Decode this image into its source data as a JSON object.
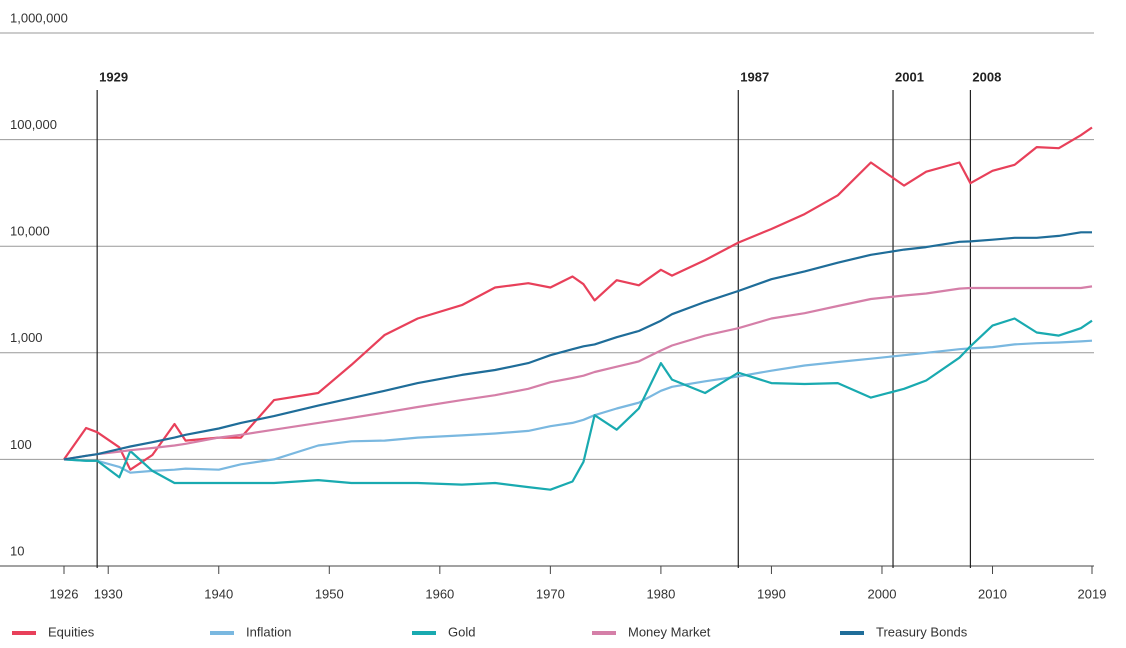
{
  "chart_data": {
    "type": "line",
    "log_scale": true,
    "grid": true,
    "legend": "bottom",
    "x": [
      1926,
      1928,
      1929,
      1931,
      1932,
      1934,
      1936,
      1937,
      1940,
      1942,
      1945,
      1949,
      1952,
      1955,
      1958,
      1962,
      1965,
      1968,
      1970,
      1972,
      1973,
      1974,
      1976,
      1978,
      1980,
      1981,
      1984,
      1987,
      1990,
      1993,
      1996,
      1999,
      2002,
      2004,
      2007,
      2008,
      2010,
      2012,
      2014,
      2016,
      2018,
      2019
    ],
    "series": [
      {
        "name": "Equities",
        "color": "#e8405a",
        "values": [
          100,
          197,
          180,
          130,
          80,
          110,
          215,
          150,
          160,
          160,
          360,
          420,
          770,
          1470,
          2100,
          2800,
          4100,
          4500,
          4100,
          5200,
          4400,
          3100,
          4800,
          4300,
          6000,
          5300,
          7400,
          10800,
          14500,
          20000,
          30000,
          61000,
          37000,
          50000,
          61000,
          39000,
          51000,
          58000,
          85000,
          83000,
          110000,
          130000
        ]
      },
      {
        "name": "Inflation",
        "color": "#7ab8e0",
        "values": [
          100,
          97,
          97,
          85,
          75,
          78,
          80,
          82,
          80,
          90,
          100,
          135,
          148,
          150,
          160,
          168,
          175,
          185,
          205,
          220,
          235,
          260,
          300,
          340,
          440,
          480,
          540,
          600,
          680,
          760,
          820,
          880,
          950,
          1000,
          1080,
          1100,
          1130,
          1200,
          1230,
          1250,
          1280,
          1300
        ]
      },
      {
        "name": "Gold",
        "color": "#19aab0",
        "values": [
          100,
          97,
          97,
          68,
          120,
          78,
          60,
          60,
          60,
          60,
          60,
          64,
          60,
          60,
          60,
          58,
          60,
          55,
          52,
          62,
          95,
          260,
          190,
          300,
          800,
          560,
          420,
          650,
          520,
          510,
          520,
          380,
          460,
          550,
          900,
          1150,
          1800,
          2100,
          1550,
          1450,
          1700,
          2000
        ]
      },
      {
        "name": "Money Market",
        "color": "#d57fa8",
        "values": [
          100,
          108,
          112,
          118,
          122,
          128,
          135,
          140,
          160,
          170,
          190,
          220,
          245,
          275,
          310,
          360,
          400,
          460,
          530,
          580,
          610,
          660,
          740,
          830,
          1050,
          1170,
          1450,
          1700,
          2100,
          2350,
          2750,
          3200,
          3450,
          3600,
          4000,
          4050,
          4050,
          4050,
          4050,
          4050,
          4050,
          4200
        ]
      },
      {
        "name": "Treasury Bonds",
        "color": "#1f6d99",
        "values": [
          100,
          108,
          112,
          125,
          132,
          145,
          160,
          170,
          195,
          220,
          255,
          320,
          375,
          440,
          520,
          620,
          690,
          800,
          950,
          1080,
          1150,
          1200,
          1400,
          1600,
          2000,
          2300,
          3000,
          3800,
          4900,
          5800,
          7000,
          8300,
          9300,
          9800,
          11000,
          11100,
          11500,
          12000,
          12000,
          12500,
          13500,
          13500
        ]
      }
    ],
    "xlim": [
      1926,
      2019
    ],
    "xticks": [
      1926,
      1930,
      1940,
      1950,
      1960,
      1970,
      1980,
      1990,
      2000,
      2010,
      2019
    ],
    "ylim": [
      10,
      1000000
    ],
    "yticks": [
      10,
      100,
      {
        "value": 1000,
        "label": "1,000"
      },
      {
        "value": 10000,
        "label": "10,000"
      },
      {
        "value": 100000,
        "label": "100,000"
      },
      {
        "value": 1000000,
        "label": "1,000,000"
      }
    ],
    "events": [
      1929,
      1987,
      2001,
      2008
    ]
  }
}
